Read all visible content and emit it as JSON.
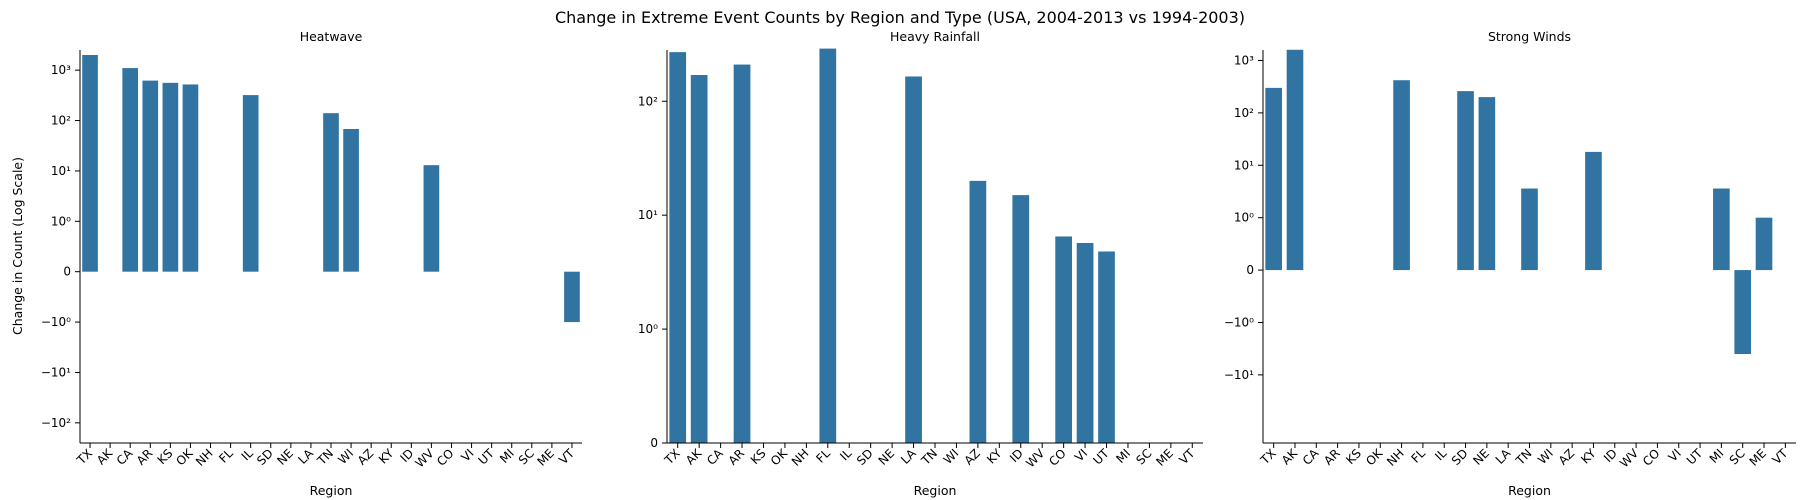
{
  "figure": {
    "title": "Change in Extreme Event Counts by Region and Type (USA, 2004-2013 vs 1994-2003)",
    "ylabel": "Change in Count (Log Scale)",
    "xlabel": "Region",
    "bar_color": "#3274a1"
  },
  "chart_data": [
    {
      "type": "bar",
      "title": "Heatwave",
      "xlabel": "Region",
      "ylabel": "Change in Count (Log Scale)",
      "yscale": "symlog",
      "ylim": [
        -150,
        2000
      ],
      "yticks": [
        {
          "value": -100,
          "label": "−10²"
        },
        {
          "value": -10,
          "label": "−10¹"
        },
        {
          "value": -1,
          "label": "−10⁰"
        },
        {
          "value": 0,
          "label": "0"
        },
        {
          "value": 1,
          "label": "10⁰"
        },
        {
          "value": 10,
          "label": "10¹"
        },
        {
          "value": 100,
          "label": "10²"
        },
        {
          "value": 1000,
          "label": "10³"
        }
      ],
      "categories": [
        "TX",
        "AK",
        "CA",
        "AR",
        "KS",
        "OK",
        "NH",
        "FL",
        "IL",
        "SD",
        "NE",
        "LA",
        "TN",
        "WI",
        "AZ",
        "KY",
        "ID",
        "WV",
        "CO",
        "VI",
        "UT",
        "MI",
        "SC",
        "ME",
        "VT"
      ],
      "values": [
        2000,
        0,
        1100,
        620,
        560,
        520,
        0,
        0,
        320,
        0,
        0,
        0,
        140,
        68,
        0,
        0,
        0,
        13,
        0,
        0,
        0,
        0,
        0,
        0,
        -1
      ]
    },
    {
      "type": "bar",
      "title": "Heavy Rainfall",
      "xlabel": "Region",
      "ylabel": "",
      "yscale": "symlog",
      "ylim": [
        0,
        300
      ],
      "yticks": [
        {
          "value": 0,
          "label": "0"
        },
        {
          "value": 1,
          "label": "10⁰"
        },
        {
          "value": 10,
          "label": "10¹"
        },
        {
          "value": 100,
          "label": "10²"
        }
      ],
      "categories": [
        "TX",
        "AK",
        "CA",
        "AR",
        "KS",
        "OK",
        "NH",
        "FL",
        "IL",
        "SD",
        "NE",
        "LA",
        "TN",
        "WI",
        "AZ",
        "KY",
        "ID",
        "WV",
        "CO",
        "VI",
        "UT",
        "MI",
        "SC",
        "ME",
        "VT"
      ],
      "values": [
        270,
        170,
        0,
        210,
        0,
        0,
        0,
        290,
        0,
        0,
        0,
        165,
        0,
        0,
        20,
        0,
        15,
        0,
        6.5,
        5.7,
        4.8,
        0,
        0,
        0,
        0
      ]
    },
    {
      "type": "bar",
      "title": "Strong Winds",
      "xlabel": "Region",
      "ylabel": "",
      "yscale": "symlog",
      "ylim": [
        -150,
        1600
      ],
      "yticks": [
        {
          "value": -10,
          "label": "−10¹"
        },
        {
          "value": -1,
          "label": "−10⁰"
        },
        {
          "value": 0,
          "label": "0"
        },
        {
          "value": 1,
          "label": "10⁰"
        },
        {
          "value": 10,
          "label": "10¹"
        },
        {
          "value": 100,
          "label": "10²"
        },
        {
          "value": 1000,
          "label": "10³"
        }
      ],
      "categories": [
        "TX",
        "AK",
        "CA",
        "AR",
        "KS",
        "OK",
        "NH",
        "FL",
        "IL",
        "SD",
        "NE",
        "LA",
        "TN",
        "WI",
        "AZ",
        "KY",
        "ID",
        "WV",
        "CO",
        "VI",
        "UT",
        "MI",
        "SC",
        "ME",
        "VT"
      ],
      "values": [
        300,
        1600,
        0,
        0,
        0,
        0,
        420,
        0,
        0,
        260,
        200,
        0,
        3.6,
        0,
        0,
        18,
        0,
        0,
        0,
        0,
        0,
        3.6,
        -4,
        1,
        0
      ]
    }
  ]
}
